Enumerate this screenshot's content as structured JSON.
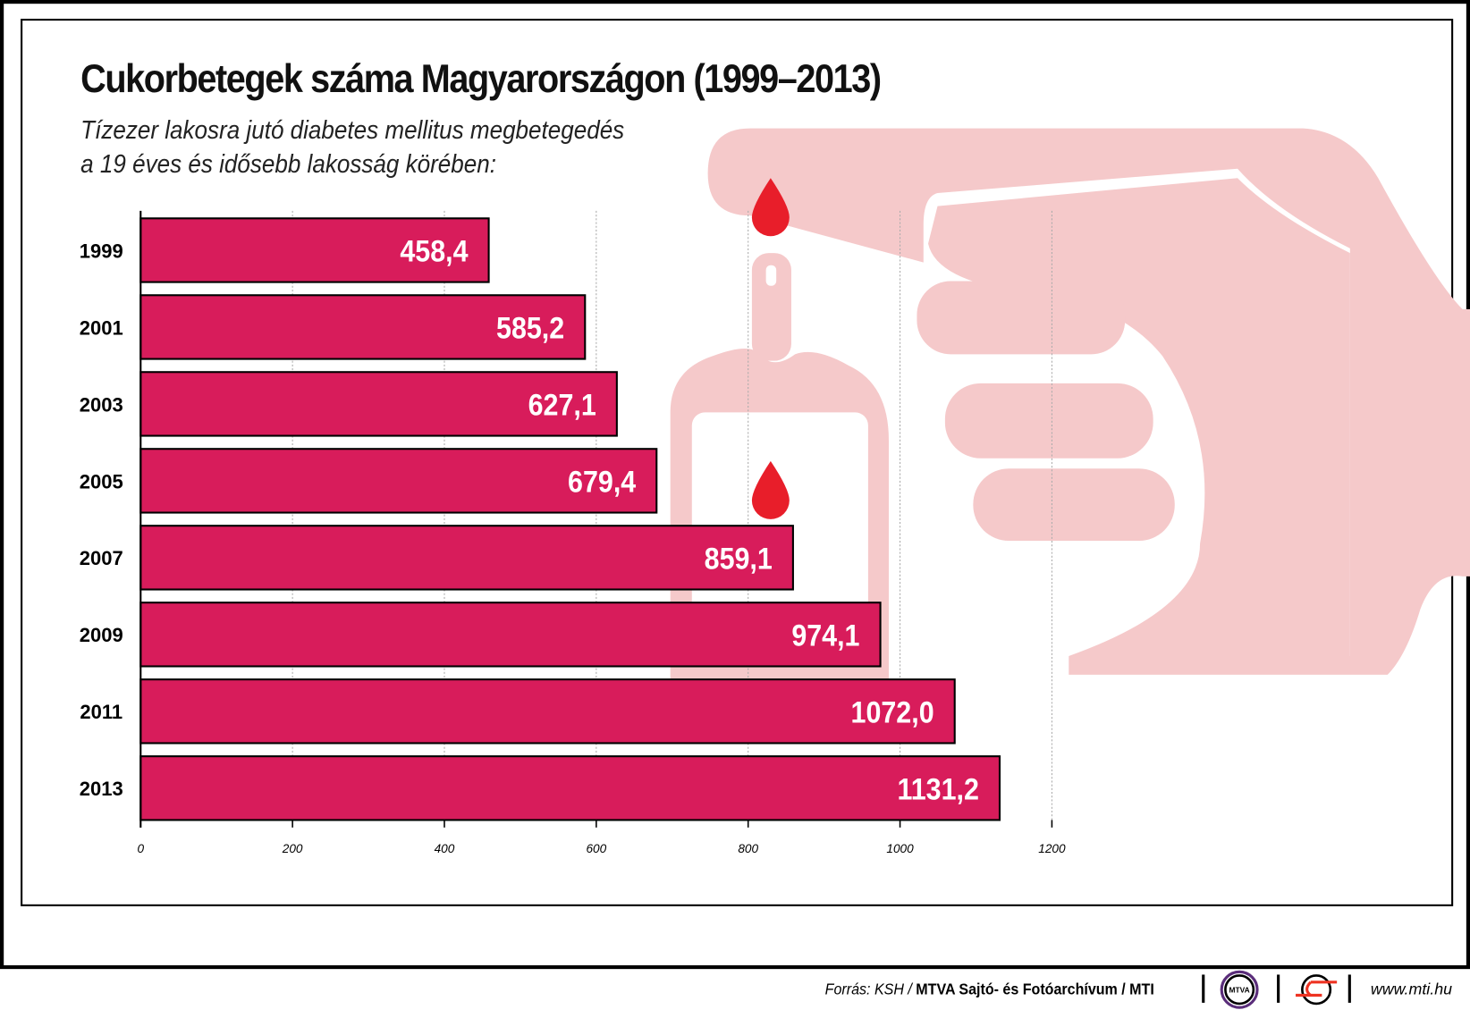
{
  "colors": {
    "bar": "#d81c5b",
    "hand": "#f5c9ca",
    "drop": "#e81e2a"
  },
  "chart_data": {
    "type": "bar",
    "orientation": "horizontal",
    "title": "Cukorbetegek száma Magyarországon (1999–2013)",
    "subtitle": [
      "Tízezer lakosra jutó diabetes mellitus megbetegedés",
      "a 19 éves és idősebb lakosság körében:"
    ],
    "categories": [
      "1999",
      "2001",
      "2003",
      "2005",
      "2007",
      "2009",
      "2011",
      "2013"
    ],
    "values": [
      458.4,
      585.2,
      627.1,
      679.4,
      859.1,
      974.1,
      1072.0,
      1131.2
    ],
    "value_labels": [
      "458,4",
      "585,2",
      "627,1",
      "679,4",
      "859,1",
      "974,1",
      "1072,0",
      "1131,2"
    ],
    "xlim": [
      0,
      1200
    ],
    "xticks": [
      "0",
      "200",
      "400",
      "600",
      "800",
      "1000",
      "1200"
    ],
    "grid": true
  },
  "footer": {
    "source_prefix": "Forrás: KSH / ",
    "source_bold": "MTVA Sajtó- és Fotóarchívum / MTI",
    "logo1": "MTVA",
    "url": "www.mti.hu"
  }
}
